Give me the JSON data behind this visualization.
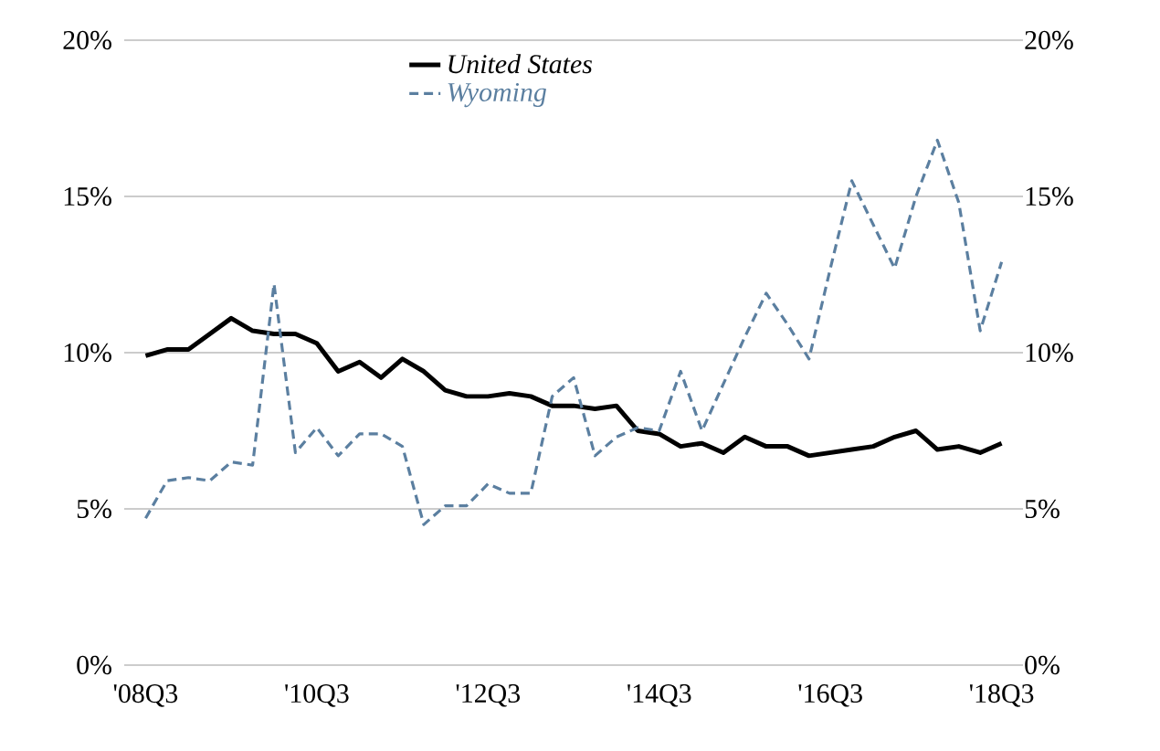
{
  "chart_data": {
    "type": "line",
    "categories": [
      "'08Q3",
      null,
      null,
      null,
      null,
      null,
      null,
      null,
      "'10Q3",
      null,
      null,
      null,
      null,
      null,
      null,
      null,
      "'12Q3",
      null,
      null,
      null,
      null,
      null,
      null,
      null,
      "'14Q3",
      null,
      null,
      null,
      null,
      null,
      null,
      null,
      "'16Q3",
      null,
      null,
      null,
      null,
      null,
      null,
      null,
      "'18Q3"
    ],
    "series": [
      {
        "name": "United States",
        "color": "#000000",
        "line_style": "solid",
        "values": [
          9.9,
          10.1,
          10.1,
          10.6,
          11.1,
          10.7,
          10.6,
          10.6,
          10.3,
          9.4,
          9.7,
          9.2,
          9.8,
          9.4,
          8.8,
          8.6,
          8.6,
          8.7,
          8.6,
          8.3,
          8.3,
          8.2,
          8.3,
          7.5,
          7.4,
          7.0,
          7.1,
          6.8,
          7.3,
          7.0,
          7.0,
          6.7,
          6.8,
          6.9,
          7.0,
          7.3,
          7.5,
          6.9,
          7.0,
          6.8,
          7.1
        ]
      },
      {
        "name": "Wyoming",
        "color": "#5b7fa0",
        "line_style": "dashed",
        "values": [
          4.7,
          5.9,
          6.0,
          5.9,
          6.5,
          6.4,
          12.2,
          6.8,
          7.6,
          6.7,
          7.4,
          7.4,
          7.0,
          4.5,
          5.1,
          5.1,
          5.8,
          5.5,
          5.5,
          8.6,
          9.2,
          6.7,
          7.3,
          7.6,
          7.5,
          9.4,
          7.5,
          9.0,
          10.5,
          11.9,
          10.9,
          9.8,
          12.7,
          15.5,
          14.1,
          12.7,
          15.0,
          16.8,
          14.8,
          10.7,
          12.9
        ]
      }
    ],
    "ylim": [
      0,
      20
    ],
    "yticks": [
      {
        "value": 0,
        "label": "0%"
      },
      {
        "value": 5,
        "label": "5%"
      },
      {
        "value": 10,
        "label": "10%"
      },
      {
        "value": 15,
        "label": "15%"
      },
      {
        "value": 20,
        "label": "20%"
      }
    ],
    "y2lim": [
      0,
      20
    ],
    "y2ticks": [
      {
        "value": 0,
        "label": "0%"
      },
      {
        "value": 5,
        "label": "5%"
      },
      {
        "value": 10,
        "label": "10%"
      },
      {
        "value": 15,
        "label": "15%"
      },
      {
        "value": 20,
        "label": "20%"
      }
    ],
    "grid": "y",
    "legend": "top",
    "marker": "none"
  }
}
